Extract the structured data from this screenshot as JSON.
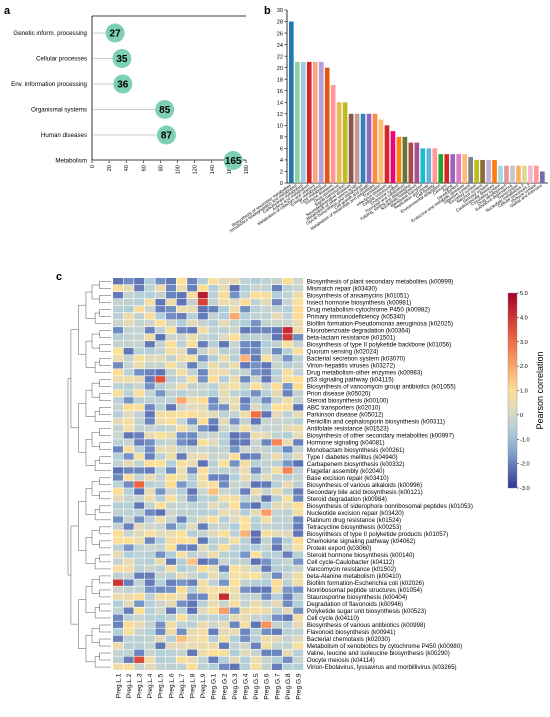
{
  "panels": {
    "a": "a",
    "b": "b",
    "c": "c"
  },
  "chart_data": [
    {
      "id": "a",
      "type": "scatter",
      "categories": [
        "Genetic inform. processing",
        "Cellular processes",
        "Env. information processing",
        "Organismal systems",
        "Human diseases",
        "Metabolism"
      ],
      "values": [
        27,
        35,
        36,
        85,
        87,
        165
      ],
      "data_labels": [
        "27",
        "35",
        "36",
        "85",
        "87",
        "165"
      ],
      "xticks": [
        0,
        20,
        40,
        60,
        80,
        100,
        120,
        140,
        160,
        180
      ],
      "xlim": [
        0,
        180
      ],
      "color": "#7dcfb6"
    },
    {
      "id": "b",
      "type": "bar",
      "yticks": [
        0,
        2,
        4,
        6,
        8,
        10,
        12,
        14,
        16,
        18,
        20,
        22,
        24,
        26,
        28,
        30
      ],
      "ylim": [
        0,
        30
      ],
      "values": [
        28,
        21,
        21,
        21,
        21,
        21,
        20,
        17,
        14,
        14,
        12,
        12,
        12,
        12,
        12,
        11,
        10,
        9,
        8,
        8,
        7,
        7,
        6,
        6,
        6,
        5,
        5,
        5,
        5,
        5,
        4.5,
        4,
        4,
        4,
        4,
        3,
        3,
        3,
        3,
        3,
        3,
        3,
        2
      ],
      "colors": [
        "#1f77b4",
        "#8fd19e",
        "#9ecae1",
        "#d62728",
        "#f4a582",
        "#b39ddb",
        "#e6550d",
        "#ff9896",
        "#e7ba52",
        "#bcbd22",
        "#8c564b",
        "#c49c94",
        "#3182bd",
        "#9467bd",
        "#fd8d3c",
        "#ffbb78",
        "#d62728",
        "#f0027f",
        "#ff7f0e",
        "#637939",
        "#ad494a",
        "#a55194",
        "#17becf",
        "#6baed6",
        "#ff9896",
        "#2ca02c",
        "#d62728",
        "#9467bd",
        "#e377c2",
        "#ffbb78",
        "#7f7f7f",
        "#bcbd22",
        "#8c6d31",
        "#c5b0d5",
        "#ff7f0e",
        "#9edae5",
        "#e7969c",
        "#c7c7c7",
        "#fdae6b",
        "#dbdb8d",
        "#f7b6d2",
        "#ff9896",
        "#756bb1"
      ],
      "xlabels": [
        "Biosynthesis of secondary metabolites",
        "Xenobiotics biodegradation and metabolism",
        "Carbohydrate metabolism",
        "Amino acid metabolism",
        "Metabolism of cofactors and vitamins",
        "Energy metabolism",
        "Lipid metabolism",
        "Immune diseases",
        "Drug resistance",
        "Signal transduction",
        "Neurodegenerative diseases",
        "Metabolism of other amino acids",
        "Glycan biosynthesis and metabolism",
        "Cell growth and death",
        "Metabolism of terpenoids and polyketides",
        "Translation",
        "Infectious diseases",
        "Cellular community",
        "Endocrine system",
        "Transport and catabolism",
        "Folding, sorting and degradation",
        "Nucleotide metabolism",
        "Membrane transport",
        "Replication and repair",
        "Cell motility",
        "Environmental adaptation",
        "Cancers",
        "Aging",
        "Development",
        "Endocrine and metabolic diseases",
        "Digestive system",
        "Excretory system",
        "Nervous system",
        "Sensory system",
        "Cardiovascular diseases",
        "Circulatory system",
        "Drug development",
        "Substance dependence",
        "Transcription",
        "Nucleotide metabolism 2",
        "Cellular processes 2",
        "Immune system",
        "Global and overview"
      ]
    },
    {
      "id": "c",
      "type": "heatmap",
      "colorbar_title": "Pearson correlation",
      "colorbar_ticks": [
        "5.0",
        "4.0",
        "3.0",
        "2.0",
        "1.0",
        "0",
        "-1.0",
        "-2.0",
        "-3.0"
      ],
      "zlim": [
        -3,
        5
      ],
      "columns": [
        "Preg.L.1",
        "Preg.L.2",
        "Preg.L.3",
        "Preg.L.4",
        "Preg.L.5",
        "Preg.L.6",
        "Preg.L.7",
        "Preg.L.8",
        "Preg.L.9",
        "Preg.G.1",
        "Preg.G.2",
        "Preg.G.3",
        "Preg.G.4",
        "Preg.G.5",
        "Preg.G.6",
        "Preg.G.7",
        "Preg.G.8",
        "Preg.G.9"
      ],
      "rows": [
        "Biosynthesis of plant secondary metabolites (k00999)",
        "Mismatch repair (k03430)",
        "Biosynthesis of ansamycins (k01051)",
        "Insect hormone biosynthesis (k00981)",
        "Drug metabolism-cytochrome P450 (k00982)",
        "Primary immunodeficiency (k05340)",
        "Biofilm formation-Pseudomonas aeruginosa (k02025)",
        "Fluorobenzoate degradation (k00364)",
        "beta-lactam resistance (k01501)",
        "Biosynthesis of type II polyketide backbone (k01056)",
        "Quorum sensing (k02024)",
        "Bacterial secretion system (k03070)",
        "Virion-hepatitis viruses (k03272)",
        "Drug metabolism-other enzymes (k00983)",
        "p53 signaling pathway (k04115)",
        "Biosynthesis of vancomycin group antibiotics (k01055)",
        "Prion disease (k05020)",
        "Steroid biosynthesis (k00100)",
        "ABC transporters (k02010)",
        "Parkinson disease (k05012)",
        "Penicillin and cephalosporin biosynthesis (k00311)",
        "Antifolate resistance (k01523)",
        "Biosynthesis of other secondary metabolites (k00997)",
        "Hormone signaling (k04081)",
        "Monobactam biosynthesis (k00261)",
        "Type I diabetes mellitus (k04940)",
        "Carbapenem biosynthesis (k00332)",
        "Flagellar assembly (k02040)",
        "Base excision repair (k03410)",
        "Biosynthesis of various alkaloids (k00996)",
        "Secondary bile acid biosynthesis (k00121)",
        "Steroid degradation (k00984)",
        "Biosynthesis of siderophore nonribosomal peptides (k01053)",
        "Nucleotide excision repair (k03420)",
        "Platinum drug resistance (k01524)",
        "Tetracycline biosynthesis (k00253)",
        "Biosynthesis of type II polyketide products (k01057)",
        "Chemokine signaling pathway (k04062)",
        "Protein export (k03060)",
        "Steroid hormone biosynthesis (k00140)",
        "Cell cycle-Caulobacter (k04112)",
        "Vancomycin resistance (k01502)",
        "beta-Alanine metabolism (k00410)",
        "Biofilm formation-Escherichia coli (k02026)",
        "Nonribosomal peptide structures (k01054)",
        "Staurosporine biosynthesis (k00404)",
        "Degradation of flavonoids (k00946)",
        "Polyketide sugar unit biosynthesis (k00523)",
        "Cell cycle (k04110)",
        "Biosynthesis of various antibiotics (k00998)",
        "Flavonoid biosynthesis (k00941)",
        "Bacterial chemotaxis (k02030)",
        "Metabolism of xenobiotics by cytochrome P450 (k00980)",
        "Valine, leucine and isoleucine biosynthesis (k00290)",
        "Oocyte meiosis (k04114)",
        "Virion-Ebolavirus, lyssavirus and morbillivirus (k03265)"
      ],
      "hot_cells": [
        [
          2,
          8,
          4.5
        ],
        [
          3,
          8,
          3.8
        ],
        [
          7,
          16,
          4.2
        ],
        [
          8,
          16,
          4.0
        ],
        [
          14,
          4,
          3.5
        ],
        [
          19,
          13,
          3.0
        ],
        [
          23,
          15,
          2.6
        ],
        [
          27,
          16,
          2.6
        ],
        [
          29,
          2,
          3.2
        ],
        [
          33,
          14,
          2.2
        ],
        [
          43,
          0,
          4.0
        ],
        [
          45,
          10,
          4.2
        ],
        [
          47,
          10,
          2.2
        ],
        [
          49,
          14,
          2.4
        ],
        [
          54,
          2,
          3.6
        ],
        [
          5,
          11,
          2.0
        ],
        [
          11,
          12,
          1.8
        ],
        [
          17,
          6,
          2.0
        ],
        [
          30,
          9,
          1.6
        ],
        [
          36,
          12,
          1.8
        ],
        [
          40,
          7,
          1.5
        ],
        [
          51,
          6,
          1.6
        ]
      ]
    }
  ]
}
